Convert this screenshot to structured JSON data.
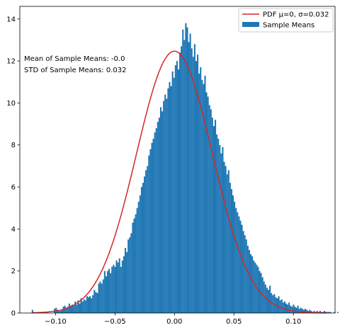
{
  "chart_data": {
    "type": "bar",
    "subtype": "histogram_with_pdf",
    "title": "",
    "xlabel": "",
    "ylabel": "",
    "xlim": [
      -0.13,
      0.135
    ],
    "ylim": [
      0,
      14.6
    ],
    "x_ticks": [
      -0.1,
      -0.05,
      0.0,
      0.05,
      0.1
    ],
    "x_tick_labels": [
      "−0.10",
      "−0.05",
      "0.00",
      "0.05",
      "0.10"
    ],
    "y_ticks": [
      0,
      2,
      4,
      6,
      8,
      10,
      12,
      14
    ],
    "y_tick_labels": [
      "0",
      "2",
      "4",
      "6",
      "8",
      "10",
      "12",
      "14"
    ],
    "grid": false,
    "legend_position": "top-right",
    "colors": {
      "histogram": "#1f77b4",
      "pdf": "#d62728",
      "axis": "#000000"
    },
    "annotations": [
      "Mean of Sample Means: -0.0",
      "STD of Sample Means: 0.032"
    ],
    "series": [
      {
        "name": "Sample Means",
        "kind": "histogram",
        "bin_start": -0.12,
        "bin_width": 0.00124,
        "values": [
          0.15,
          0,
          0,
          0,
          0,
          0,
          0,
          0,
          0,
          0,
          0,
          0,
          0,
          0,
          0,
          0.2,
          0.25,
          0.15,
          0.1,
          0.1,
          0.15,
          0.3,
          0.35,
          0.25,
          0.3,
          0.45,
          0.35,
          0.4,
          0.35,
          0.55,
          0.4,
          0.6,
          0.45,
          0.7,
          0.55,
          0.65,
          0.6,
          0.8,
          0.75,
          0.8,
          0.7,
          0.85,
          1.1,
          1.0,
          0.95,
          1.4,
          1.5,
          1.4,
          1.6,
          2.0,
          1.75,
          2.0,
          2.1,
          1.9,
          2.2,
          2.3,
          2.2,
          2.5,
          2.4,
          2.6,
          2.2,
          2.5,
          2.7,
          3.1,
          2.9,
          3.5,
          3.6,
          3.8,
          4.3,
          4.5,
          4.7,
          5.0,
          5.3,
          5.6,
          6.0,
          6.2,
          6.5,
          6.8,
          7.0,
          7.5,
          7.8,
          8.1,
          8.3,
          8.6,
          8.8,
          9.1,
          9.3,
          9.8,
          9.6,
          10.1,
          10.4,
          10.2,
          10.7,
          11.0,
          10.8,
          11.5,
          11.2,
          11.8,
          12.0,
          11.6,
          12.4,
          12.7,
          13.5,
          13.0,
          13.8,
          13.6,
          12.9,
          13.3,
          12.6,
          12.2,
          12.8,
          12.0,
          12.3,
          11.4,
          11.7,
          11.1,
          10.9,
          11.3,
          10.5,
          10.3,
          9.9,
          9.7,
          9.3,
          8.9,
          9.2,
          8.5,
          8.3,
          8.0,
          7.6,
          7.9,
          7.2,
          7.0,
          6.6,
          6.8,
          6.2,
          5.9,
          5.6,
          5.3,
          5.0,
          4.8,
          4.6,
          4.4,
          4.2,
          3.9,
          3.7,
          3.5,
          3.2,
          3.0,
          2.8,
          2.7,
          2.5,
          2.4,
          2.3,
          2.2,
          2.0,
          1.9,
          1.7,
          1.5,
          1.35,
          1.2,
          1.1,
          1.3,
          0.95,
          0.85,
          0.9,
          0.75,
          0.7,
          0.8,
          0.6,
          0.65,
          0.5,
          0.55,
          0.45,
          0.4,
          0.5,
          0.35,
          0.3,
          0.4,
          0.3,
          0.25,
          0.35,
          0.2,
          0.25,
          0.2,
          0.15,
          0.2,
          0.15,
          0.1,
          0.15,
          0.1,
          0.05,
          0.1,
          0.05,
          0.1,
          0.05,
          0.1,
          0.05,
          0.05,
          0.1,
          0.05,
          0.05,
          0.05,
          0.05,
          0,
          0,
          0.05,
          0,
          0.05,
          0,
          0.2
        ]
      },
      {
        "name": "PDF μ=0, σ=0.032",
        "kind": "line",
        "mu": 0,
        "sigma": 0.032,
        "x_range": [
          -0.12,
          0.128
        ]
      }
    ]
  }
}
